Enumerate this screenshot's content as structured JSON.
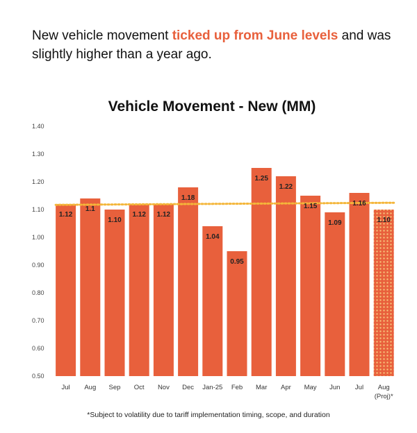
{
  "headline": {
    "part1": "New vehicle movement ",
    "highlight": "ticked up from June levels",
    "part2": " and was slightly higher than a year ago."
  },
  "footnote": "*Subject to volatility due to tariff implementation timing, scope, and duration",
  "colors": {
    "bar": "#e8603c",
    "projected_bar": "#e8603c",
    "average_line": "#f4b63a",
    "highlight_text": "#e8603c"
  },
  "chart_data": {
    "type": "bar",
    "title": "Vehicle Movement - New (MM)",
    "xlabel": "",
    "ylabel": "",
    "ylim": [
      0.5,
      1.4
    ],
    "yticks": [
      "0.50",
      "0.60",
      "0.70",
      "0.80",
      "0.90",
      "1.00",
      "1.10",
      "1.20",
      "1.30",
      "1.40"
    ],
    "grid": false,
    "categories": [
      "Jul",
      "Aug",
      "Sep",
      "Oct",
      "Nov",
      "Dec",
      "Jan-25",
      "Feb",
      "Mar",
      "Apr",
      "May",
      "Jun",
      "Jul",
      "Aug (Proj)*"
    ],
    "values": [
      1.12,
      1.14,
      1.1,
      1.12,
      1.12,
      1.18,
      1.04,
      0.95,
      1.25,
      1.22,
      1.15,
      1.09,
      1.16,
      1.1
    ],
    "data_labels": [
      "1.12",
      "1.1",
      "1.10",
      "1.12",
      "1.12",
      "1.18",
      "1.04",
      "0.95",
      "1.25",
      "1.22",
      "1.15",
      "1.09",
      "1.16",
      "1.10"
    ],
    "projected": [
      false,
      false,
      false,
      false,
      false,
      false,
      false,
      false,
      false,
      false,
      false,
      false,
      false,
      true
    ],
    "average_line_value": 1.122
  }
}
